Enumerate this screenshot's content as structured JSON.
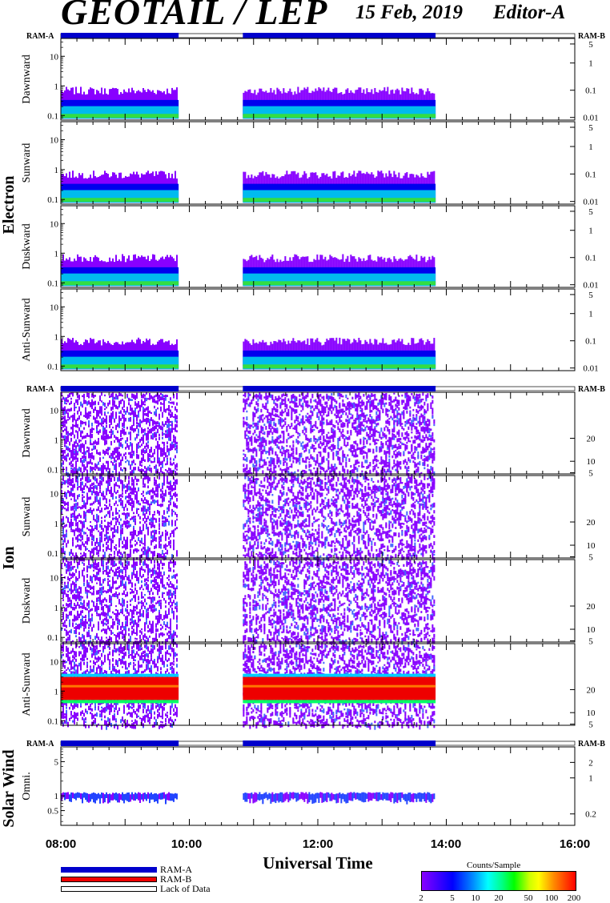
{
  "header": {
    "title": "GEOTAIL / LEP",
    "date": "15 Feb, 2019",
    "editor": "Editor-A"
  },
  "x_axis": {
    "label": "Universal Time",
    "tick_labels": [
      "08:00",
      "10:00",
      "12:00",
      "14:00",
      "16:00"
    ]
  },
  "footer_legend": {
    "items": [
      {
        "label": "RAM-A",
        "color": "#0000cc"
      },
      {
        "label": "RAM-B",
        "color": "#ee0000"
      },
      {
        "label": "Lack of Data",
        "color": "#ffffff"
      }
    ]
  },
  "colorbar": {
    "title": "Counts/Sample",
    "tick_labels": [
      "2",
      "5",
      "10",
      "20",
      "50",
      "100",
      "200"
    ],
    "range": [
      2,
      200
    ]
  },
  "ram_bar": {
    "left_label": "RAM-A",
    "right_label": "RAM-B",
    "color": "#0000cc"
  },
  "groups": [
    {
      "name": "Electron"
    },
    {
      "name": "Ion"
    },
    {
      "name": "Solar Wind"
    }
  ],
  "chart_data": [
    {
      "type": "heatmap",
      "group": "Electron",
      "title": "Dawnward",
      "xlim": [
        "08:00",
        "16:00"
      ],
      "coverage": [
        [
          "08:00",
          "09:50"
        ],
        [
          "10:50",
          "13:50"
        ]
      ],
      "left_ticks": [
        "0.1",
        "1",
        "10"
      ],
      "right_ticks": [
        "0.01",
        "0.1",
        "1",
        "5"
      ],
      "band_left": [
        0.1,
        0.5
      ],
      "band_right": [
        0.01,
        0.05
      ]
    },
    {
      "type": "heatmap",
      "group": "Electron",
      "title": "Sunward",
      "xlim": [
        "08:00",
        "16:00"
      ],
      "coverage": [
        [
          "08:00",
          "09:50"
        ],
        [
          "10:50",
          "13:50"
        ]
      ],
      "left_ticks": [
        "0.1",
        "1",
        "10"
      ],
      "right_ticks": [
        "0.01",
        "0.1",
        "1",
        "5"
      ],
      "band_left": [
        0.1,
        0.5
      ],
      "band_right": [
        0.01,
        0.05
      ]
    },
    {
      "type": "heatmap",
      "group": "Electron",
      "title": "Duskward",
      "xlim": [
        "08:00",
        "16:00"
      ],
      "coverage": [
        [
          "08:00",
          "09:50"
        ],
        [
          "10:50",
          "13:50"
        ]
      ],
      "left_ticks": [
        "0.1",
        "1",
        "10"
      ],
      "right_ticks": [
        "0.01",
        "0.1",
        "1",
        "5"
      ],
      "band_left": [
        0.1,
        0.5
      ],
      "band_right": [
        0.01,
        0.05
      ]
    },
    {
      "type": "heatmap",
      "group": "Electron",
      "title": "Anti-Sunward",
      "xlim": [
        "08:00",
        "16:00"
      ],
      "coverage": [
        [
          "08:00",
          "09:50"
        ],
        [
          "10:50",
          "13:50"
        ]
      ],
      "left_ticks": [
        "0.1",
        "1",
        "10"
      ],
      "right_ticks": [
        "0.01",
        "0.1",
        "1",
        "5"
      ],
      "band_left": [
        0.1,
        0.5
      ],
      "band_right": [
        0.01,
        0.05
      ]
    },
    {
      "type": "heatmap",
      "group": "Ion",
      "title": "Dawnward",
      "xlim": [
        "08:00",
        "16:00"
      ],
      "coverage": [
        [
          "08:00",
          "09:50"
        ],
        [
          "10:50",
          "13:50"
        ]
      ],
      "left_ticks": [
        "0.1",
        "1",
        "10"
      ],
      "right_ticks": [
        "5",
        "10",
        "20"
      ]
    },
    {
      "type": "heatmap",
      "group": "Ion",
      "title": "Sunward",
      "xlim": [
        "08:00",
        "16:00"
      ],
      "coverage": [
        [
          "08:00",
          "09:50"
        ],
        [
          "10:50",
          "13:50"
        ]
      ],
      "left_ticks": [
        "0.1",
        "1",
        "10"
      ],
      "right_ticks": [
        "5",
        "10",
        "20"
      ]
    },
    {
      "type": "heatmap",
      "group": "Ion",
      "title": "Duskward",
      "xlim": [
        "08:00",
        "16:00"
      ],
      "coverage": [
        [
          "08:00",
          "09:50"
        ],
        [
          "10:50",
          "13:50"
        ]
      ],
      "left_ticks": [
        "0.1",
        "1",
        "10"
      ],
      "right_ticks": [
        "5",
        "10",
        "20"
      ]
    },
    {
      "type": "heatmap",
      "group": "Ion",
      "title": "Anti-Sunward",
      "xlim": [
        "08:00",
        "16:00"
      ],
      "coverage": [
        [
          "08:00",
          "09:50"
        ],
        [
          "10:50",
          "13:50"
        ]
      ],
      "left_ticks": [
        "0.1",
        "1",
        "10"
      ],
      "right_ticks": [
        "5",
        "10",
        "20"
      ],
      "band_left": [
        0.5,
        3
      ]
    },
    {
      "type": "heatmap",
      "group": "Solar Wind",
      "title": "Omni.",
      "xlim": [
        "08:00",
        "16:00"
      ],
      "coverage": [
        [
          "08:00",
          "09:50"
        ],
        [
          "10:50",
          "13:50"
        ]
      ],
      "left_ticks": [
        "0.5",
        "1",
        "5"
      ],
      "right_ticks": [
        "0.2",
        "1",
        "2"
      ],
      "band_left": [
        0.8,
        1.2
      ]
    }
  ]
}
